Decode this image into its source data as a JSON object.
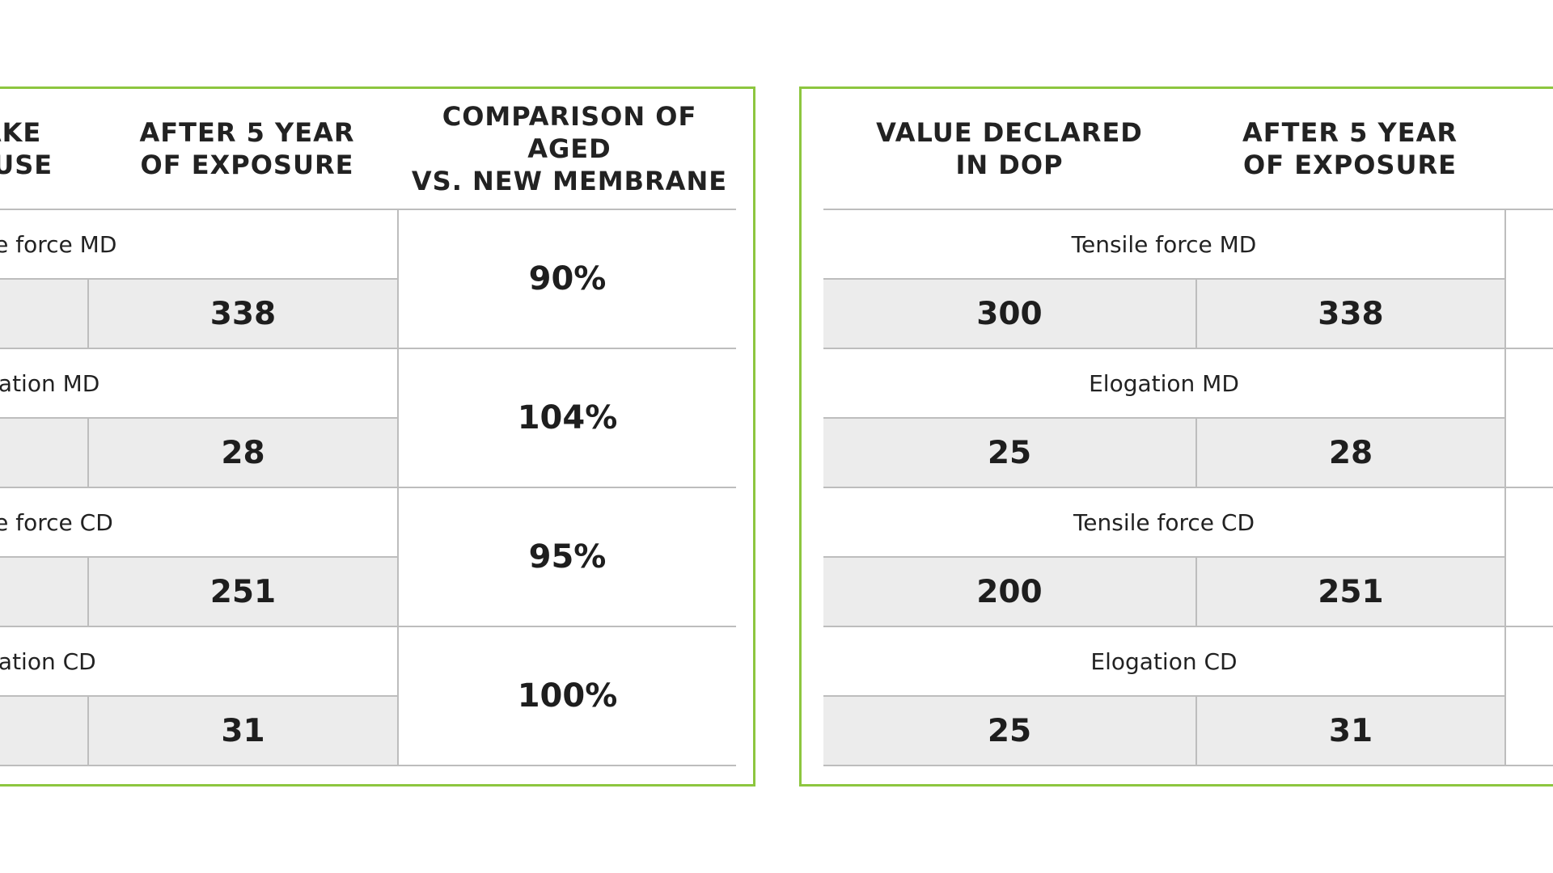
{
  "left_table": {
    "headers": {
      "col1": "AKE\nOUSE",
      "col2": "AFTER 5 YEAR\nOF EXPOSURE",
      "col3": "COMPARISON OF AGED\nVS. NEW MEMBRANE"
    },
    "rows": [
      {
        "label": "sile force MD",
        "after": "338",
        "comparison": "90%"
      },
      {
        "label": "ogation MD",
        "after": "28",
        "comparison": "104%"
      },
      {
        "label": "sile force CD",
        "after": "251",
        "comparison": "95%"
      },
      {
        "label": "ogation CD",
        "after": "31",
        "comparison": "100%"
      }
    ]
  },
  "right_table": {
    "headers": {
      "col1": "VALUE DECLARED\nIN DOP",
      "col2": "AFTER 5 YEAR\nOF EXPOSURE"
    },
    "rows": [
      {
        "label": "Tensile force MD",
        "declared": "300",
        "after": "338"
      },
      {
        "label": "Elogation MD",
        "declared": "25",
        "after": "28"
      },
      {
        "label": "Tensile force CD",
        "declared": "200",
        "after": "251"
      },
      {
        "label": "Elogation CD",
        "declared": "25",
        "after": "31"
      }
    ]
  }
}
